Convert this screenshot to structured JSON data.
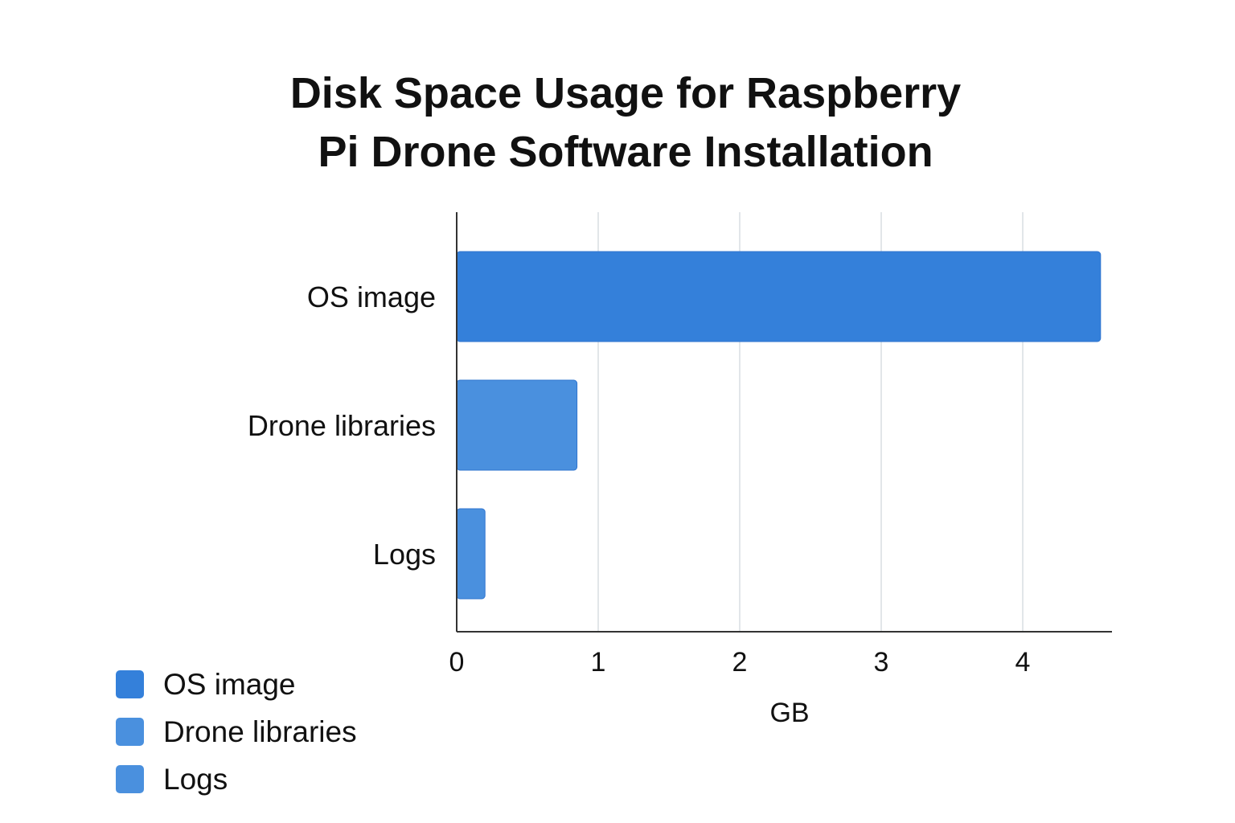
{
  "chart_data": {
    "type": "bar",
    "orientation": "horizontal",
    "title": "Disk Space Usage for Raspberry Pi Drone Software Installation",
    "title_lines": [
      "Disk Space Usage for Raspberry",
      "Pi Drone Software Installation"
    ],
    "categories": [
      "OS image",
      "Drone libraries",
      "Logs"
    ],
    "values": [
      4.55,
      0.85,
      0.2
    ],
    "xlabel": "GB",
    "ylabel": "",
    "xlim": [
      0,
      4.6
    ],
    "xticks": [
      0,
      1,
      2,
      3,
      4
    ],
    "grid": "vertical",
    "legend": "bottom-left",
    "colors": [
      "#3480da",
      "#4a90de",
      "#4a90de"
    ],
    "legend_entries": [
      "OS image",
      "Drone libraries",
      "Logs"
    ]
  }
}
